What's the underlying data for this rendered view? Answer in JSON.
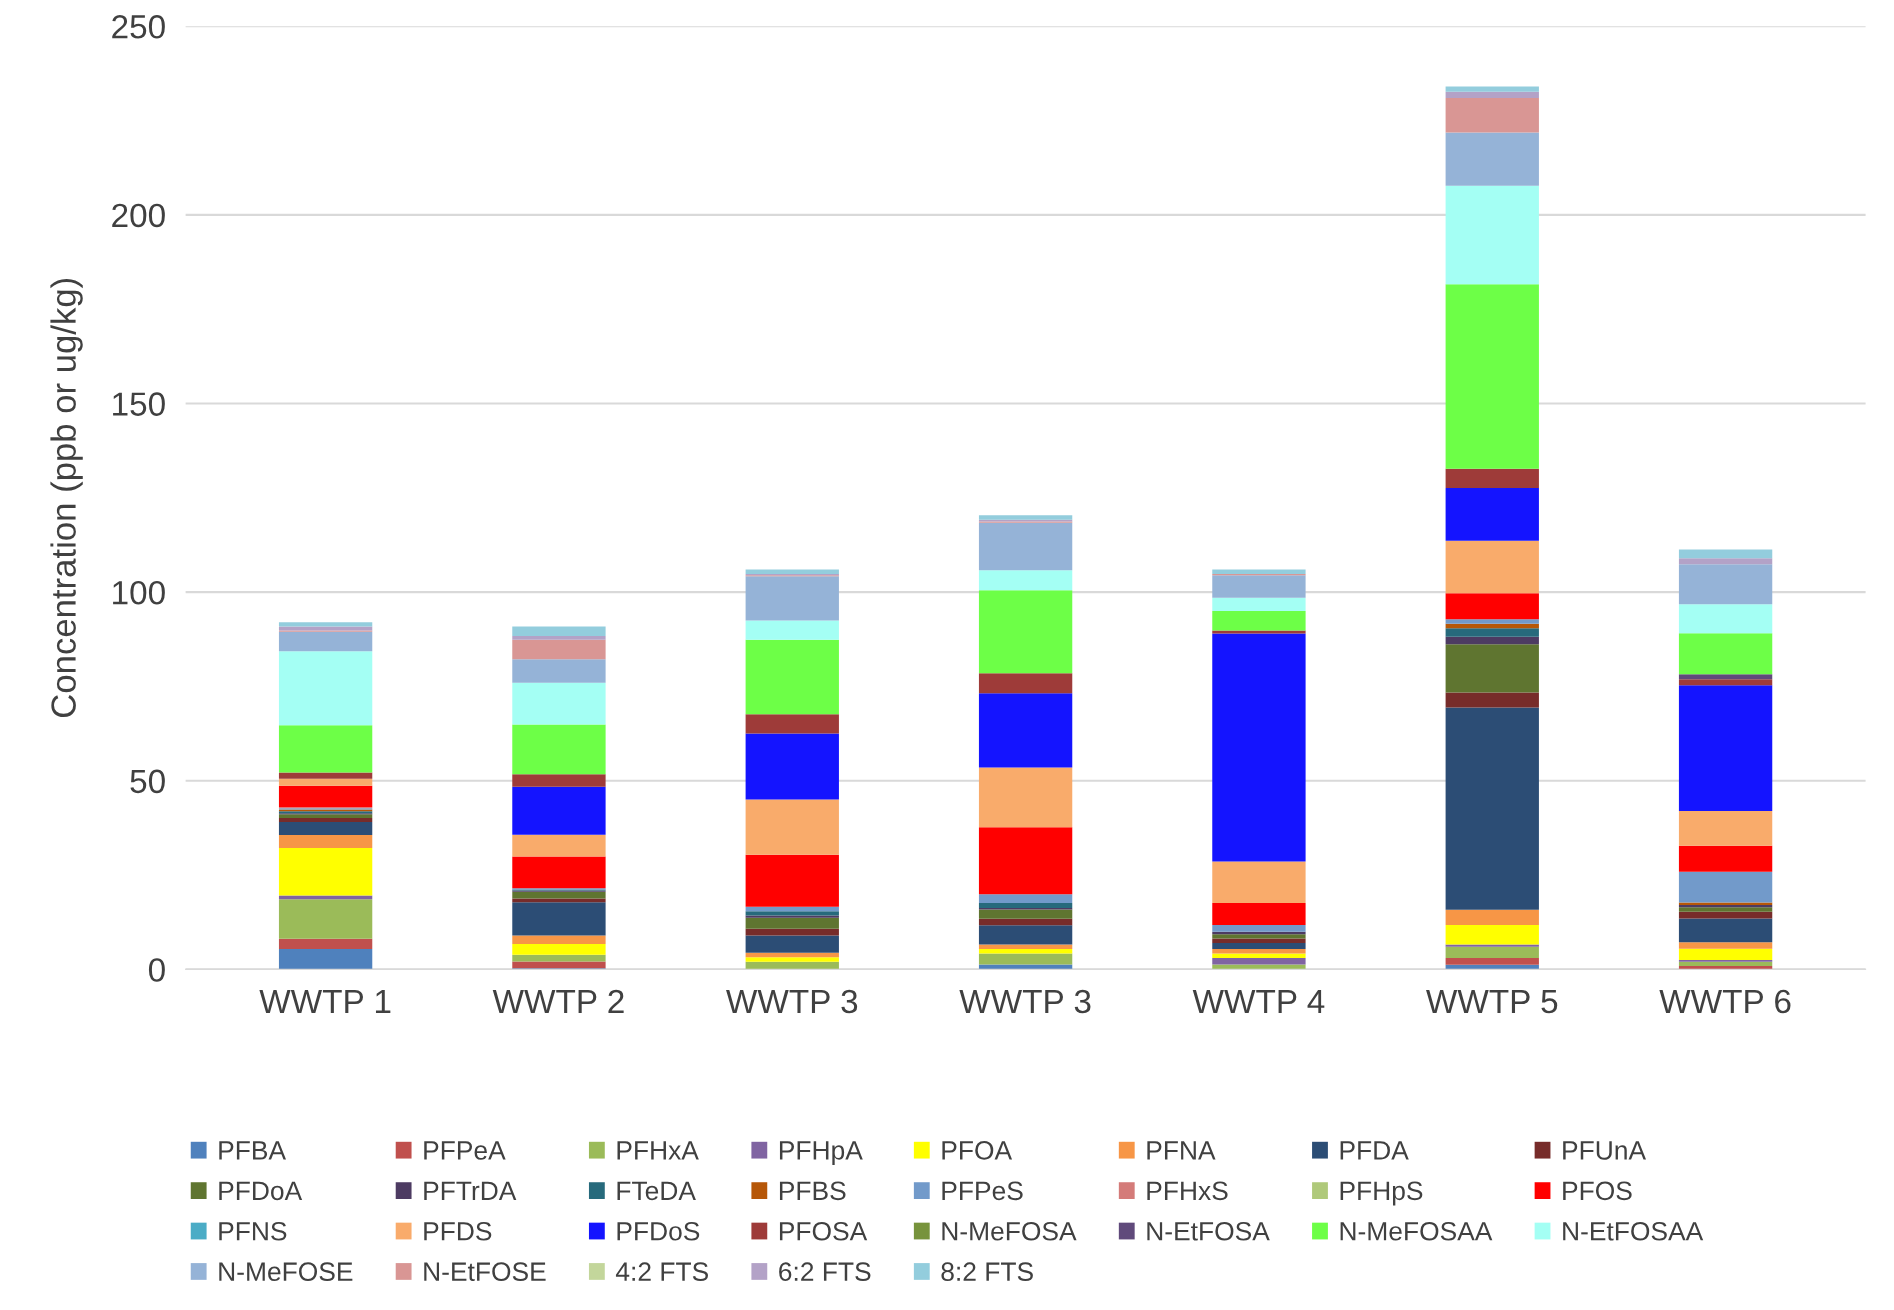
{
  "chart_data": {
    "type": "bar",
    "stacked": true,
    "ylabel": "Concentration (ppb or ug/kg)",
    "categories": [
      "WWTP 1",
      "WWTP 2",
      "WWTP 3",
      "WWTP 3",
      "WWTP 4",
      "WWTP 5",
      "WWTP 6"
    ],
    "ylim": [
      0,
      250
    ],
    "yticks": [
      0,
      50,
      100,
      150,
      200,
      250
    ],
    "grid": "y",
    "legend": "bottom",
    "series": [
      {
        "name": "PFBA",
        "color": "#4f81bd",
        "values": [
          5.4,
          0.3,
          0,
          1.3,
          0,
          1.2,
          0
        ]
      },
      {
        "name": "PFPeA",
        "color": "#c0504d",
        "values": [
          2.7,
          1.8,
          0,
          0,
          0,
          1.8,
          0.9
        ]
      },
      {
        "name": "PFHxA",
        "color": "#9bbb59",
        "values": [
          10.5,
          1.8,
          2.0,
          2.9,
          1.3,
          3.0,
          1.1
        ]
      },
      {
        "name": "PFHpA",
        "color": "#8064a2",
        "values": [
          1.0,
          0,
          0,
          0,
          1.7,
          0.6,
          0.5
        ]
      },
      {
        "name": "PFOA",
        "color": "#ffff00",
        "values": [
          12.6,
          2.8,
          1.2,
          1.2,
          1.2,
          5.2,
          3.0
        ]
      },
      {
        "name": "PFNA",
        "color": "#f79646",
        "values": [
          3.4,
          2.3,
          1.2,
          1.2,
          1.2,
          4.0,
          1.7
        ]
      },
      {
        "name": "PFDA",
        "color": "#2c4d75",
        "values": [
          3.5,
          8.8,
          4.6,
          5.1,
          1.6,
          53.6,
          6.3
        ]
      },
      {
        "name": "PFUnA",
        "color": "#772c2a",
        "values": [
          1.0,
          1.0,
          1.8,
          1.7,
          1.2,
          4.0,
          1.8
        ]
      },
      {
        "name": "PFDoA",
        "color": "#5f7530",
        "values": [
          1.0,
          1.8,
          2.9,
          2.5,
          1.1,
          12.8,
          1.2
        ]
      },
      {
        "name": "PFTrDA",
        "color": "#4d3b62",
        "values": [
          0.3,
          0.3,
          0.6,
          0.4,
          0.7,
          2.0,
          0.6
        ]
      },
      {
        "name": "FTeDA",
        "color": "#276a7c",
        "values": [
          0.5,
          0.3,
          1.1,
          1.3,
          0,
          2.2,
          0
        ]
      },
      {
        "name": "PFBS",
        "color": "#b65708",
        "values": [
          0.5,
          0,
          0,
          0,
          0,
          1.2,
          0.6
        ]
      },
      {
        "name": "PFPeS",
        "color": "#729aca",
        "values": [
          0.3,
          0.3,
          1.2,
          2.3,
          1.8,
          1.2,
          8.2
        ]
      },
      {
        "name": "PFHxS",
        "color": "#d47b79",
        "values": [
          0.3,
          0,
          0,
          0,
          0,
          0,
          0
        ]
      },
      {
        "name": "PFHpS",
        "color": "#afc97a",
        "values": [
          0,
          0,
          0,
          0,
          0,
          0,
          0
        ]
      },
      {
        "name": "PFOS",
        "color": "#ff0000",
        "values": [
          5.7,
          8.4,
          13.8,
          17.8,
          5.8,
          6.9,
          6.9
        ]
      },
      {
        "name": "PFNS",
        "color": "#4bacc6",
        "values": [
          0,
          0,
          0,
          0,
          0,
          0,
          0
        ]
      },
      {
        "name": "PFDS",
        "color": "#f9ab6b",
        "values": [
          1.8,
          5.8,
          14.6,
          15.8,
          11.0,
          13.9,
          9.2
        ]
      },
      {
        "name": "PFDoS",
        "color": "#1414ff",
        "values": [
          0,
          12.7,
          17.5,
          19.7,
          60.4,
          14.0,
          33.3
        ]
      },
      {
        "name": "PFOSA",
        "color": "#9e3b39",
        "values": [
          1.7,
          3.3,
          5.1,
          5.3,
          0.8,
          5.1,
          1.6
        ]
      },
      {
        "name": "N-MeFOSA",
        "color": "#77933c",
        "values": [
          0,
          0,
          0,
          0,
          0,
          0,
          0
        ]
      },
      {
        "name": "N-EtFOSA",
        "color": "#604a7b",
        "values": [
          0,
          0,
          0,
          0,
          0,
          0,
          1.3
        ]
      },
      {
        "name": "N-MeFOSAA",
        "color": "#6dff47",
        "values": [
          12.5,
          13.2,
          19.8,
          22.0,
          5.2,
          48.9,
          10.9
        ]
      },
      {
        "name": "N-EtFOSAA",
        "color": "#a4fff4",
        "values": [
          19.6,
          11.1,
          5.1,
          5.3,
          3.5,
          26.1,
          7.7
        ]
      },
      {
        "name": "N-MeFOSE",
        "color": "#95b3d7",
        "values": [
          5.2,
          6.2,
          11.7,
          12.6,
          6.0,
          14.1,
          10.6
        ]
      },
      {
        "name": "N-EtFOSE",
        "color": "#d99694",
        "values": [
          0.3,
          5.2,
          0.3,
          0.3,
          0.3,
          9.2,
          0
        ]
      },
      {
        "name": "4:2 FTS",
        "color": "#c3d69b",
        "values": [
          0,
          0,
          0,
          0,
          0,
          0,
          0
        ]
      },
      {
        "name": "6:2 FTS",
        "color": "#b3a2c7",
        "values": [
          1.1,
          1.0,
          0.3,
          0.5,
          0,
          1.6,
          1.6
        ]
      },
      {
        "name": "8:2 FTS",
        "color": "#93cddd",
        "values": [
          1.1,
          2.5,
          1.2,
          1.2,
          1.2,
          1.4,
          2.3
        ]
      }
    ]
  }
}
